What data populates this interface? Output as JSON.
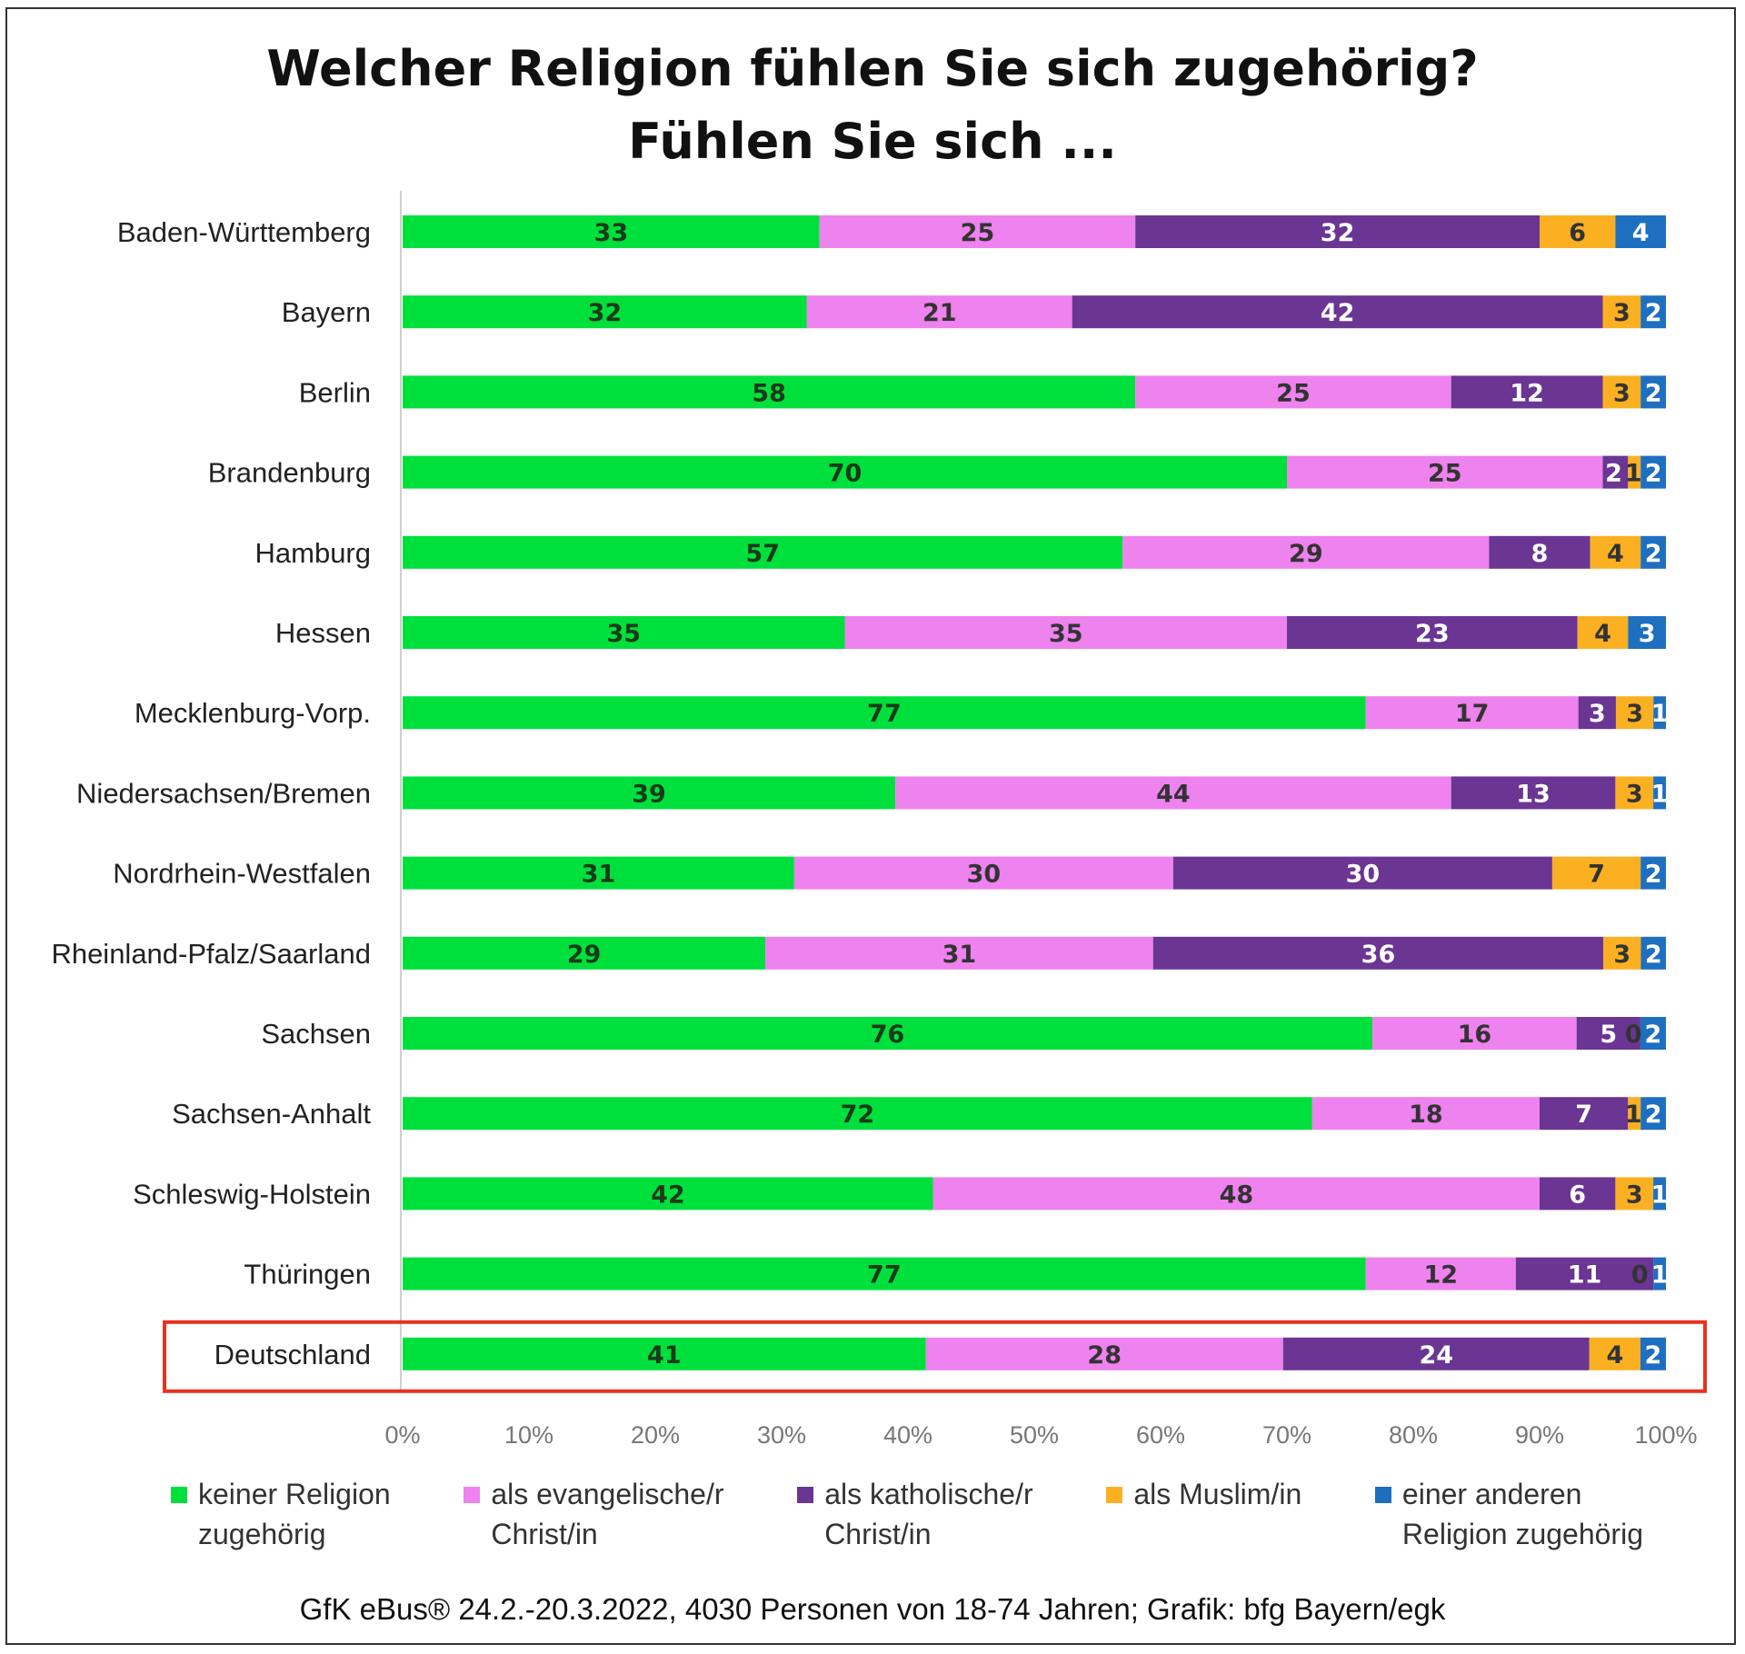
{
  "chart_data": {
    "type": "bar",
    "orientation": "horizontal",
    "stacked": "percent",
    "title": "Welcher Religion fühlen Sie sich zugehörig?",
    "subtitle": "Fühlen Sie sich ...",
    "categories": [
      "Baden-Württemberg",
      "Bayern",
      "Berlin",
      "Brandenburg",
      "Hamburg",
      "Hessen",
      "Mecklenburg-Vorp.",
      "Niedersachsen/Bremen",
      "Nordrhein-Westfalen",
      "Rheinland-Pfalz/Saarland",
      "Sachsen",
      "Sachsen-Anhalt",
      "Schleswig-Holstein",
      "Thüringen",
      "Deutschland"
    ],
    "highlighted_category": "Deutschland",
    "highlight_color": "#e8321e",
    "series": [
      {
        "name": "keiner Religion zugehörig",
        "color": "#00e03c",
        "label_color": "#1a3a1a",
        "values": [
          33,
          32,
          58,
          70,
          57,
          35,
          77,
          39,
          31,
          29,
          76,
          72,
          42,
          77,
          41
        ]
      },
      {
        "name": "als evangelische/r Christ/in",
        "color": "#ee82ee",
        "label_color": "#333333",
        "values": [
          25,
          21,
          25,
          25,
          29,
          35,
          17,
          44,
          30,
          31,
          16,
          18,
          48,
          12,
          28
        ]
      },
      {
        "name": "als katholische/r Christ/in",
        "color": "#6a3593",
        "label_color": "#ffffff",
        "values": [
          32,
          42,
          12,
          2,
          8,
          23,
          3,
          13,
          30,
          36,
          5,
          7,
          6,
          11,
          24
        ]
      },
      {
        "name": "als Muslim/in",
        "color": "#fbb022",
        "label_color": "#333333",
        "values": [
          6,
          3,
          3,
          1,
          4,
          4,
          3,
          3,
          7,
          3,
          0,
          1,
          3,
          0,
          4
        ]
      },
      {
        "name": "einer anderen Religion zugehörig",
        "color": "#1e6fc0",
        "label_color": "#ffffff",
        "values": [
          4,
          2,
          2,
          2,
          2,
          3,
          1,
          1,
          2,
          2,
          2,
          2,
          1,
          1,
          2
        ]
      }
    ],
    "xlim": [
      0,
      100
    ],
    "xticks": [
      "0%",
      "10%",
      "20%",
      "30%",
      "40%",
      "50%",
      "60%",
      "70%",
      "80%",
      "90%",
      "100%"
    ],
    "grid": false,
    "legend_position": "bottom"
  },
  "legend": [
    {
      "line1": "keiner Religion",
      "line2": "zugehörig"
    },
    {
      "line1": "als evangelische/r",
      "line2": "Christ/in"
    },
    {
      "line1": "als katholische/r",
      "line2": "Christ/in"
    },
    {
      "line1": "als Muslim/in",
      "line2": ""
    },
    {
      "line1": "einer anderen",
      "line2": "Religion zugehörig"
    }
  ],
  "footer": "GfK eBus® 24.2.-20.3.2022, 4030 Personen von 18-74 Jahren;   Grafik: bfg Bayern/egk"
}
